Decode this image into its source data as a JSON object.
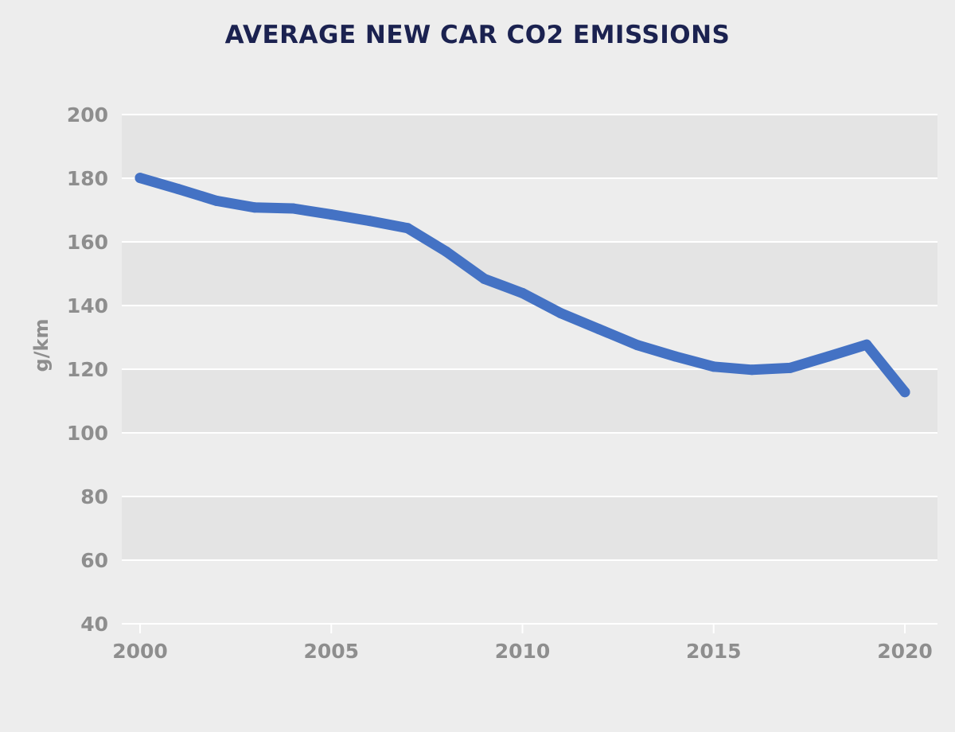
{
  "chart_data": {
    "type": "line",
    "title": "AVERAGE NEW CAR CO2 EMISSIONS",
    "xlabel": "",
    "ylabel": "g/km",
    "xlim": [
      2000,
      2020
    ],
    "ylim": [
      40,
      200
    ],
    "x_ticks": [
      2000,
      2005,
      2010,
      2015,
      2020
    ],
    "y_ticks": [
      40,
      60,
      80,
      100,
      120,
      140,
      160,
      180,
      200
    ],
    "grid": true,
    "legend": "none",
    "series": [
      {
        "name": "",
        "color": "#4472c4",
        "x": [
          2000,
          2001,
          2002,
          2003,
          2004,
          2005,
          2006,
          2007,
          2008,
          2009,
          2010,
          2011,
          2012,
          2013,
          2014,
          2015,
          2016,
          2017,
          2018,
          2019,
          2020
        ],
        "values": [
          180.1,
          176.6,
          172.9,
          170.8,
          170.5,
          168.6,
          166.6,
          164.3,
          157.0,
          148.4,
          143.9,
          137.6,
          132.6,
          127.6,
          124.0,
          120.8,
          119.8,
          120.4,
          124.0,
          127.7,
          112.8
        ]
      }
    ]
  },
  "colors": {
    "background": "#ededed",
    "band": "#e4e4e4",
    "gridline": "#ffffff",
    "tick_text": "#8e8e8e",
    "title_text": "#1b2250",
    "line": "#4472c4"
  }
}
